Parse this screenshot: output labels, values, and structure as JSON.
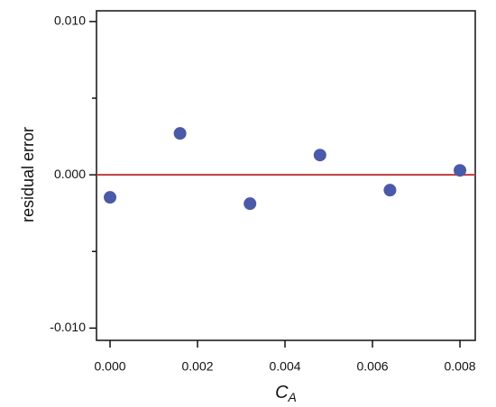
{
  "chart_data": {
    "type": "scatter",
    "ylabel": "residual error",
    "xlabel": "C",
    "xlabel_subscript": "A",
    "x": [
      0.0,
      0.0016,
      0.0032,
      0.0048,
      0.0064,
      0.008
    ],
    "series": [
      {
        "color": "#4a5aa8",
        "values": [
          -0.00147,
          0.0027,
          -0.00188,
          0.00129,
          -0.001,
          0.00029
        ]
      }
    ],
    "xlim": [
      -0.00031,
      0.00835
    ],
    "ylim": [
      -0.0108,
      0.0107
    ],
    "xticks": [
      {
        "value": 0,
        "label": "0.000"
      },
      {
        "value": 0.002,
        "label": "0.002"
      },
      {
        "value": 0.004,
        "label": "0.004"
      },
      {
        "value": 0.006,
        "label": "0.006"
      },
      {
        "value": 0.008,
        "label": "0.008"
      }
    ],
    "yticks": [
      {
        "value": -0.01,
        "label": "-0.010"
      },
      {
        "value": 0,
        "label": "0.000"
      },
      {
        "value": 0.01,
        "label": "0.010"
      }
    ],
    "yminor_ticks": [
      -0.005,
      0.005
    ],
    "reference_line": {
      "value": 0,
      "color": "#c0393b"
    },
    "grid": false
  }
}
